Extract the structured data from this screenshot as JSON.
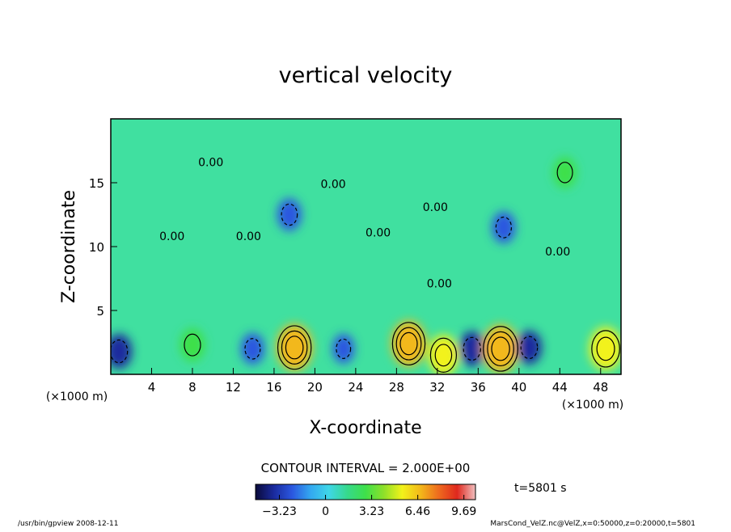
{
  "chart_data": {
    "type": "heatmap",
    "title": "vertical velocity",
    "xlabel": "X-coordinate",
    "ylabel": "Z-coordinate",
    "x_unit": "(×1000 m)",
    "x_unit_left": "(×1000 m)",
    "xlim": [
      0,
      50
    ],
    "ylim": [
      0,
      20
    ],
    "x_ticks": [
      4,
      8,
      12,
      16,
      20,
      24,
      28,
      32,
      36,
      40,
      44,
      48
    ],
    "y_ticks": [
      5,
      10,
      15
    ],
    "contour_interval_text": "CONTOUR INTERVAL = 2.000E+00",
    "time_text": "t=5801 s",
    "contour_labels": [
      {
        "text": "0.00",
        "x": 9.8,
        "z": 16.3
      },
      {
        "text": "0.00",
        "x": 6.0,
        "z": 10.5
      },
      {
        "text": "0.00",
        "x": 13.5,
        "z": 10.5
      },
      {
        "text": "0.00",
        "x": 21.8,
        "z": 14.6
      },
      {
        "text": "0.00",
        "x": 26.2,
        "z": 10.8
      },
      {
        "text": "0.00",
        "x": 31.8,
        "z": 12.8
      },
      {
        "text": "0.00",
        "x": 32.2,
        "z": 6.8
      },
      {
        "text": "0.00",
        "x": 43.8,
        "z": 9.3
      }
    ],
    "cells": [
      {
        "x": 0.8,
        "z": 1.8,
        "value": -3.5
      },
      {
        "x": 8.0,
        "z": 2.3,
        "value": 3.0
      },
      {
        "x": 13.9,
        "z": 2.0,
        "value": -2.5
      },
      {
        "x": 18.0,
        "z": 2.1,
        "value": 6.8
      },
      {
        "x": 22.8,
        "z": 2.0,
        "value": -2.0
      },
      {
        "x": 29.2,
        "z": 2.4,
        "value": 6.5
      },
      {
        "x": 32.6,
        "z": 1.5,
        "value": 5.0
      },
      {
        "x": 35.4,
        "z": 2.0,
        "value": -3.5
      },
      {
        "x": 38.2,
        "z": 2.0,
        "value": 7.2
      },
      {
        "x": 41.0,
        "z": 2.1,
        "value": -3.2
      },
      {
        "x": 48.5,
        "z": 2.0,
        "value": 5.8
      },
      {
        "x": 17.5,
        "z": 12.5,
        "value": -2.8
      },
      {
        "x": 38.5,
        "z": 11.5,
        "value": -2.6
      },
      {
        "x": 44.5,
        "z": 15.8,
        "value": 2.5
      }
    ],
    "colorbar": {
      "ticks": [
        "−3.23",
        "0",
        "3.23",
        "6.46",
        "9.69"
      ],
      "range": [
        -4.9,
        10.5
      ],
      "colors": [
        "#0a0a3a",
        "#1a2a9e",
        "#2b57e0",
        "#33a8f0",
        "#3fd6e8",
        "#36d98c",
        "#3ee04a",
        "#8ee02a",
        "#f2f21a",
        "#f2b81a",
        "#ee6a1e",
        "#e0281e",
        "#f0c0c0"
      ]
    }
  },
  "footer": {
    "left": "/usr/bin/gpview   2008-12-11",
    "right": "MarsCond_VelZ.nc@VelZ,x=0:50000,z=0:20000,t=5801"
  }
}
